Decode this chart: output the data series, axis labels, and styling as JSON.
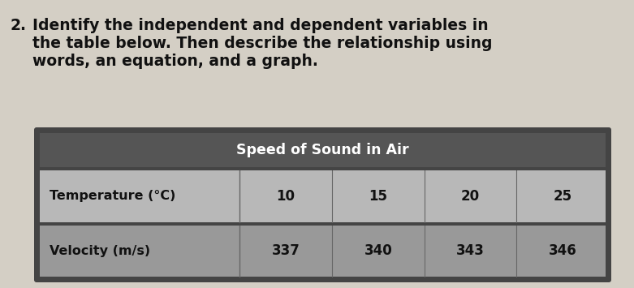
{
  "question_number": "2.",
  "question_text": "Identify the independent and dependent variables in\nthe table below. Then describe the relationship using\nwords, an equation, and a graph.",
  "table_title": "Speed of Sound in Air",
  "row1_label": "Temperature (°C)",
  "row1_values": [
    "10",
    "15",
    "20",
    "25"
  ],
  "row2_label": "Velocity (m/s)",
  "row2_values": [
    "337",
    "340",
    "343",
    "346"
  ],
  "header_bg": "#555555",
  "header_text_color": "#ffffff",
  "row1_bg": "#b8b8b8",
  "row2_bg": "#999999",
  "row_text_color": "#111111",
  "table_outer_bg": "#444444",
  "page_bg": "#d4cfc5",
  "text_color": "#111111",
  "question_fontsize": 13.5,
  "table_title_fontsize": 12.5,
  "table_data_fontsize": 12,
  "table_label_fontsize": 11.5
}
